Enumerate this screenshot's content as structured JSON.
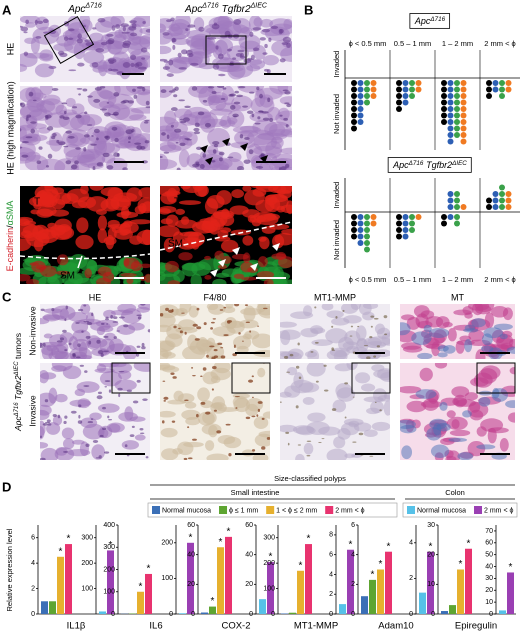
{
  "panel_a": {
    "label": "A",
    "columns": [
      [
        {
          "text": "Apc",
          "italic": true
        },
        {
          "text": "Δ716",
          "sup": true,
          "italic": true
        }
      ],
      [
        {
          "text": "Apc",
          "italic": true
        },
        {
          "text": "Δ716",
          "sup": true,
          "italic": true
        },
        {
          "text": "Tgfbr2",
          "italic": true
        },
        {
          "text": "ΔIEC",
          "sup": true,
          "italic": true
        }
      ]
    ],
    "rows": [
      "HE",
      "HE (high magnification)"
    ],
    "row3": [
      {
        "text": "E-cadherin",
        "color": "#d4202a"
      },
      {
        "text": "/",
        "color": "#000000"
      },
      {
        "text": "αSMA",
        "color": "#2a9a3a"
      }
    ],
    "image_labels": [
      "T",
      "SM"
    ]
  },
  "panel_b": {
    "label": "B",
    "columns": [
      "ϕ < 0.5 mm",
      "0.5 – 1 mm",
      "1 – 2 mm",
      "2 mm < ϕ"
    ],
    "invaded": "Invaded",
    "not_invaded": "Not invaded",
    "dot_colors": [
      "#000000",
      "#2d5fb4",
      "#3aa14a",
      "#f07a22"
    ],
    "plots": [
      {
        "title": [
          {
            "text": "Apc",
            "italic": true
          },
          {
            "text": "Δ716",
            "sup": true,
            "italic": true
          }
        ],
        "groups": [
          {
            "invaded": [
              0,
              0,
              0,
              0
            ],
            "not_invaded": [
              8,
              7,
              4,
              3
            ]
          },
          {
            "invaded": [
              0,
              0,
              0,
              0
            ],
            "not_invaded": [
              5,
              4,
              3,
              2
            ]
          },
          {
            "invaded": [
              0,
              0,
              0,
              0
            ],
            "not_invaded": [
              7,
              10,
              9,
              10
            ]
          },
          {
            "invaded": [
              0,
              0,
              0,
              0
            ],
            "not_invaded": [
              3,
              2,
              3,
              2
            ]
          }
        ]
      },
      {
        "title": [
          {
            "text": "Apc",
            "italic": true
          },
          {
            "text": "Δ716",
            "sup": true,
            "italic": true
          },
          {
            "text": "Tgfbr2",
            "italic": true
          },
          {
            "text": "ΔIEC",
            "sup": true,
            "italic": true
          }
        ],
        "groups": [
          {
            "invaded": [
              0,
              0,
              0,
              0
            ],
            "not_invaded": [
              4,
              5,
              6,
              2
            ]
          },
          {
            "invaded": [
              0,
              0,
              0,
              0
            ],
            "not_invaded": [
              4,
              4,
              3,
              1
            ]
          },
          {
            "invaded": [
              0,
              3,
              3,
              1
            ],
            "not_invaded": [
              2,
              1,
              2,
              0
            ]
          },
          {
            "invaded": [
              2,
              3,
              4,
              3
            ],
            "not_invaded": [
              0,
              0,
              0,
              0
            ]
          }
        ]
      }
    ]
  },
  "panel_c": {
    "label": "C",
    "columns": [
      "HE",
      "F4/80",
      "MT1-MMP",
      "MT"
    ],
    "rows": [
      "Non-invasive",
      "Invasive"
    ],
    "genotype": [
      {
        "text": "Apc",
        "italic": true
      },
      {
        "text": "Δ716",
        "sup": true,
        "italic": true
      },
      {
        "text": "Tgfbr2",
        "italic": true
      },
      {
        "text": "ΔIEC",
        "sup": true,
        "italic": true
      },
      {
        "text": "tumors"
      }
    ]
  },
  "panel_d": {
    "label": "D",
    "header": "Size-classified polyps",
    "small_intestine": "Small intestine",
    "colon": "Colon",
    "y_label": "Relative expression level",
    "legend_small": [
      {
        "name": "Normal mucosa",
        "color": "#3b6fb6"
      },
      {
        "name": "ϕ ≤ 1 mm",
        "color": "#5ea531"
      },
      {
        "name": "1 < ϕ ≤ 2 mm",
        "color": "#e6b02e"
      },
      {
        "name": "2 mm < ϕ",
        "color": "#e8336f"
      }
    ],
    "legend_colon": [
      {
        "name": "Normal mucosa",
        "color": "#56c1e8"
      },
      {
        "name": "2 mm < ϕ",
        "color": "#9a3fb3"
      }
    ]
  },
  "chart_data": [
    {
      "type": "bar",
      "title": "IL1β",
      "ylim": [
        0,
        7
      ],
      "yticks": [
        0,
        2,
        4,
        6
      ],
      "y2lim": [
        0,
        350
      ],
      "y2ticks": [
        100,
        200,
        300
      ],
      "series": [
        {
          "values": [
            1,
            1,
            4.5,
            5.5
          ],
          "significance": [
            null,
            null,
            "*",
            "*"
          ]
        },
        {
          "axis": "y2",
          "values": [
            10,
            250
          ],
          "significance": [
            null,
            "*"
          ]
        }
      ]
    },
    {
      "type": "bar",
      "title": "IL6",
      "ylim": [
        0,
        400
      ],
      "yticks": [
        0,
        100,
        200,
        300,
        400
      ],
      "y2lim": [
        0,
        250
      ],
      "y2ticks": [
        0,
        100,
        200
      ],
      "series": [
        {
          "values": [
            1,
            2,
            100,
            180
          ],
          "significance": [
            null,
            null,
            "*",
            "*"
          ]
        },
        {
          "axis": "y2",
          "values": [
            2,
            200
          ],
          "significance": [
            null,
            "*"
          ]
        }
      ]
    },
    {
      "type": "bar",
      "title": "COX-2",
      "ylim": [
        0,
        60
      ],
      "yticks": [
        0,
        20,
        40,
        60
      ],
      "y2lim": [
        0,
        60
      ],
      "y2ticks": [
        0,
        20,
        40,
        60
      ],
      "series": [
        {
          "values": [
            1,
            5,
            45,
            52
          ],
          "significance": [
            null,
            "*",
            "*",
            "*"
          ]
        },
        {
          "axis": "y2",
          "values": [
            10,
            35
          ],
          "significance": [
            null,
            "*"
          ]
        }
      ]
    },
    {
      "type": "bar",
      "title": "MT1-MMP",
      "ylim": [
        0,
        350
      ],
      "yticks": [
        0,
        100,
        200,
        300
      ],
      "y2lim": [
        0,
        9
      ],
      "y2ticks": [
        0,
        2,
        4,
        6,
        8
      ],
      "series": [
        {
          "values": [
            2,
            5,
            170,
            275
          ],
          "significance": [
            null,
            null,
            "*",
            "*"
          ]
        },
        {
          "axis": "y2",
          "values": [
            1,
            6.5
          ],
          "significance": [
            null,
            "*"
          ]
        }
      ]
    },
    {
      "type": "bar",
      "title": "Adam10",
      "ylim": [
        0,
        6
      ],
      "yticks": [
        0,
        2,
        4,
        6
      ],
      "y2lim": [
        0,
        5
      ],
      "y2ticks": [
        0,
        2,
        4
      ],
      "series": [
        {
          "values": [
            1.2,
            2.3,
            3,
            4.2
          ],
          "significance": [
            null,
            "*",
            "*",
            "*"
          ]
        },
        {
          "axis": "y2",
          "values": [
            1.2,
            3.5
          ],
          "significance": [
            null,
            "*"
          ]
        }
      ]
    },
    {
      "type": "bar",
      "title": "Epiregulin",
      "ylim": [
        0,
        30
      ],
      "yticks": [
        0,
        10,
        20,
        30
      ],
      "y2lim": [
        0,
        75
      ],
      "y2ticks": [
        0,
        10,
        20,
        30,
        40,
        50,
        60,
        70
      ],
      "series": [
        {
          "values": [
            1,
            3,
            15,
            22
          ],
          "significance": [
            null,
            null,
            "*",
            "*"
          ]
        },
        {
          "axis": "y2",
          "values": [
            3,
            35
          ],
          "significance": [
            null,
            "*"
          ]
        }
      ]
    }
  ]
}
